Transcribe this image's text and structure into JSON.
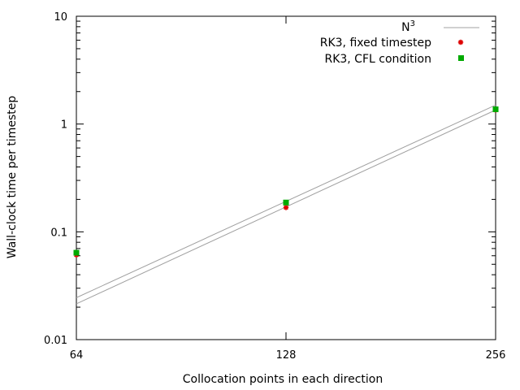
{
  "chart_data": {
    "type": "scatter",
    "xlabel": "Collocation points in each direction",
    "ylabel": "Wall-clock time per timestep",
    "xscale": "log2",
    "yscale": "log10",
    "xlim": [
      64,
      256
    ],
    "ylim": [
      0.01,
      10
    ],
    "x_ticks": [
      "64",
      "128",
      "256"
    ],
    "y_ticks": [
      "0.01",
      "0.1",
      "1",
      "10"
    ],
    "grid": false,
    "legend_position": "top-right",
    "series": [
      {
        "name": "N",
        "name_superscript": "3",
        "kind": "line",
        "color": "#a0a0a0",
        "lines": [
          {
            "x": [
              64,
              256
            ],
            "y": [
              0.0215,
              1.35
            ]
          },
          {
            "x": [
              64,
              256
            ],
            "y": [
              0.0245,
              1.5
            ]
          }
        ]
      },
      {
        "name": "RK3, fixed timestep",
        "kind": "points",
        "marker": "star",
        "color": "#dd0000",
        "x": [
          64,
          128,
          256
        ],
        "y": [
          0.061,
          0.168,
          1.35
        ]
      },
      {
        "name": "RK3, CFL condition",
        "kind": "points",
        "marker": "square",
        "color": "#00aa00",
        "x": [
          64,
          128,
          256
        ],
        "y": [
          0.064,
          0.187,
          1.37
        ]
      }
    ]
  }
}
